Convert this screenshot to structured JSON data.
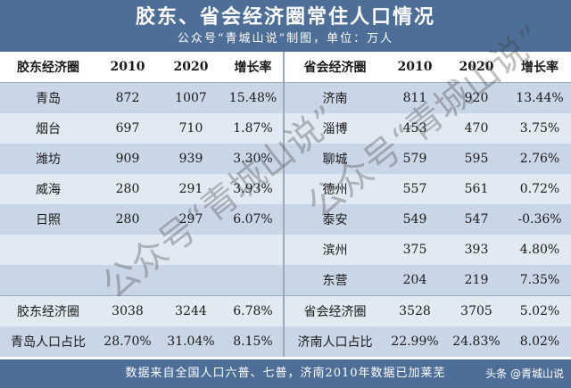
{
  "header": {
    "title": "胶东、省会经济圈常住人口情况",
    "subtitle": "公众号“青城山说”制图，单位：万人"
  },
  "table": {
    "columns": [
      "胶东经济圈",
      "2010",
      "2020",
      "增长率",
      "省会经济圈",
      "2010",
      "2020",
      "增长率"
    ],
    "rows": [
      [
        "青岛",
        "872",
        "1007",
        "15.48%",
        "济南",
        "811",
        "920",
        "13.44%"
      ],
      [
        "烟台",
        "697",
        "710",
        "1.87%",
        "淄博",
        "453",
        "470",
        "3.75%"
      ],
      [
        "潍坊",
        "909",
        "939",
        "3.30%",
        "聊城",
        "579",
        "595",
        "2.76%"
      ],
      [
        "威海",
        "280",
        "291",
        "3.93%",
        "德州",
        "557",
        "561",
        "0.72%"
      ],
      [
        "日照",
        "280",
        "297",
        "6.07%",
        "泰安",
        "549",
        "547",
        "-0.36%"
      ],
      [
        "",
        "",
        "",
        "",
        "滨州",
        "375",
        "393",
        "4.80%"
      ],
      [
        "",
        "",
        "",
        "",
        "东营",
        "204",
        "219",
        "7.35%"
      ],
      [
        "胶东经济圈",
        "3038",
        "3244",
        "6.78%",
        "省会经济圈",
        "3528",
        "3705",
        "5.02%"
      ],
      [
        "青岛人口占比",
        "28.70%",
        "31.04%",
        "8.15%",
        "济南人口占比",
        "22.99%",
        "24.83%",
        "8.02%"
      ]
    ]
  },
  "footer": {
    "note": "数据来自全国人口六普、七普，济南2010年数据已加莱芜",
    "brand": "头条 @青城山说"
  },
  "watermark": {
    "line1": "公众号“青城山说”",
    "line2": "公众号“青城山说”"
  },
  "colors": {
    "banner": "#4d6f97",
    "row_odd": "#c9d6e6",
    "row_even": "#e1e9f3"
  }
}
